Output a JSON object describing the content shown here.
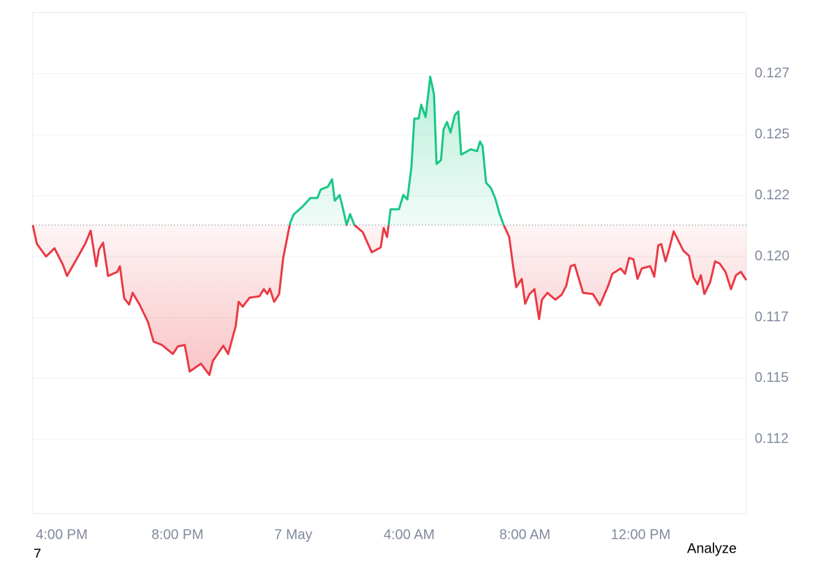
{
  "chart_data": {
    "type": "line",
    "x": [
      15.0,
      15.14,
      15.46,
      15.75,
      16.04,
      16.18,
      16.47,
      16.81,
      17.0,
      17.19,
      17.29,
      17.43,
      17.6,
      17.92,
      18.01,
      18.16,
      18.33,
      18.45,
      18.69,
      18.98,
      19.17,
      19.46,
      19.84,
      20.01,
      20.25,
      20.42,
      20.81,
      21.1,
      21.22,
      21.58,
      21.75,
      22.01,
      22.11,
      22.25,
      22.49,
      22.83,
      22.98,
      23.1,
      23.19,
      23.34,
      23.51,
      23.65,
      23.89,
      24.01,
      24.33,
      24.59,
      24.83,
      24.95,
      25.19,
      25.34,
      25.43,
      25.6,
      25.72,
      25.84,
      25.96,
      26.11,
      26.4,
      26.71,
      27.02,
      27.12,
      27.24,
      27.36,
      27.65,
      27.8,
      27.94,
      28.08,
      28.18,
      28.33,
      28.42,
      28.57,
      28.73,
      28.86,
      28.95,
      29.1,
      29.19,
      29.31,
      29.43,
      29.58,
      29.7,
      29.8,
      30.13,
      30.35,
      30.45,
      30.54,
      30.66,
      30.83,
      30.98,
      31.12,
      31.27,
      31.46,
      31.58,
      31.7,
      31.89,
      32.01,
      32.16,
      32.33,
      32.49,
      32.59,
      32.78,
      33.05,
      33.27,
      33.43,
      33.58,
      33.72,
      34.01,
      34.35,
      34.59,
      34.88,
      35.02,
      35.31,
      35.46,
      35.6,
      35.75,
      35.89,
      36.04,
      36.33,
      36.47,
      36.61,
      36.71,
      36.86,
      37.0,
      37.14,
      37.48,
      37.67,
      37.82,
      37.96,
      38.08,
      38.2,
      38.4,
      38.57,
      38.73,
      38.93,
      39.12,
      39.29,
      39.46,
      39.65
    ],
    "values": [
      0.12129,
      0.12052,
      0.12,
      0.12034,
      0.11966,
      0.1192,
      0.1198,
      0.12052,
      0.12106,
      0.1196,
      0.12029,
      0.12057,
      0.1192,
      0.11937,
      0.1196,
      0.11828,
      0.11803,
      0.11851,
      0.11803,
      0.11731,
      0.11651,
      0.11637,
      0.116,
      0.11631,
      0.11637,
      0.11528,
      0.1156,
      0.11514,
      0.11571,
      0.11634,
      0.116,
      0.11714,
      0.11814,
      0.11794,
      0.11831,
      0.11837,
      0.11866,
      0.11846,
      0.11868,
      0.11814,
      0.11846,
      0.11994,
      0.12137,
      0.12172,
      0.12206,
      0.1224,
      0.1224,
      0.12275,
      0.12286,
      0.12317,
      0.12229,
      0.12252,
      0.12194,
      0.12129,
      0.12174,
      0.12129,
      0.121,
      0.12017,
      0.12037,
      0.12117,
      0.1208,
      0.12194,
      0.12194,
      0.12252,
      0.12234,
      0.12366,
      0.12566,
      0.12566,
      0.12623,
      0.12572,
      0.12738,
      0.12666,
      0.1238,
      0.12395,
      0.12521,
      0.12552,
      0.12509,
      0.12581,
      0.12595,
      0.12418,
      0.1244,
      0.12432,
      0.12472,
      0.12452,
      0.12303,
      0.1228,
      0.12237,
      0.12177,
      0.12129,
      0.1208,
      0.11971,
      0.11874,
      0.11908,
      0.11806,
      0.11846,
      0.11866,
      0.11743,
      0.11823,
      0.11851,
      0.11823,
      0.11843,
      0.1188,
      0.1196,
      0.11966,
      0.11851,
      0.11846,
      0.118,
      0.1188,
      0.11929,
      0.11951,
      0.11929,
      0.11994,
      0.11989,
      0.11908,
      0.11951,
      0.1196,
      0.11917,
      0.12046,
      0.12051,
      0.1198,
      0.12037,
      0.12103,
      0.12023,
      0.12003,
      0.11914,
      0.11886,
      0.11923,
      0.11846,
      0.11894,
      0.1198,
      0.11971,
      0.11937,
      0.11866,
      0.11923,
      0.11937,
      0.11903
    ],
    "baseline": 0.12129,
    "up_color": "#16c784",
    "down_color": "#ea3943",
    "xlim": [
      15,
      39.65
    ],
    "xticks": [
      {
        "value": 16,
        "label": "4:00 PM"
      },
      {
        "value": 20,
        "label": "8:00 PM"
      },
      {
        "value": 24,
        "label": "7 May"
      },
      {
        "value": 28,
        "label": "4:00 AM"
      },
      {
        "value": 32,
        "label": "8:00 AM"
      },
      {
        "value": 36,
        "label": "12:00 PM"
      }
    ],
    "ylim": [
      0.10945,
      0.13001
    ],
    "yticks": [
      {
        "value": 0.1125,
        "label": "0.112"
      },
      0.115,
      {
        "value": 0.1175,
        "label": "0.117"
      },
      {
        "value": 0.12,
        "label": "0.120"
      },
      {
        "value": 0.1225,
        "label": "0.122"
      },
      0.125,
      {
        "value": 0.1275,
        "label": "0.127"
      }
    ],
    "grid": true
  },
  "ui": {
    "analyze_button": "Analyze",
    "corner_text": "7"
  }
}
